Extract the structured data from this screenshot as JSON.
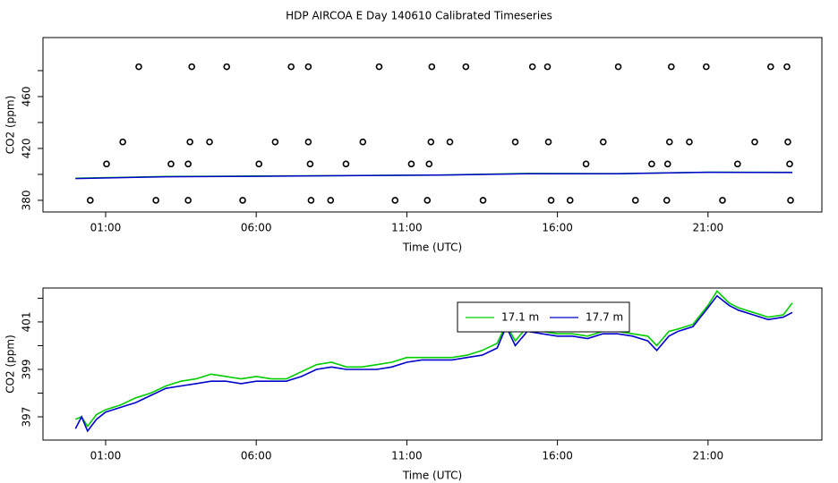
{
  "title": "HDP AIRCOA E  Day 140610  Calibrated Timeseries",
  "chart_data": [
    {
      "type": "scatter",
      "xlabel": "Time (UTC)",
      "ylabel": "CO2 (ppm)",
      "xlim": [
        -1.08,
        24.78
      ],
      "xticks": [
        {
          "value": 1,
          "label": "01:00"
        },
        {
          "value": 6,
          "label": "06:00"
        },
        {
          "value": 11,
          "label": "11:00"
        },
        {
          "value": 16,
          "label": "16:00"
        },
        {
          "value": 21,
          "label": "21:00"
        }
      ],
      "ylim": [
        371,
        505.5
      ],
      "yticks": [
        380,
        420,
        460
      ],
      "yticks_minor": [
        400,
        440,
        480
      ],
      "color": "#000000",
      "x": [
        0.49,
        2.67,
        3.74,
        5.55,
        7.82,
        8.47,
        10.61,
        11.68,
        13.53,
        15.79,
        16.42,
        18.59,
        19.63,
        21.48,
        23.74,
        1.03,
        3.17,
        3.74,
        6.09,
        7.79,
        8.98,
        11.15,
        11.74,
        16.95,
        19.13,
        19.66,
        21.98,
        23.71,
        1.57,
        3.8,
        4.45,
        6.63,
        7.73,
        9.54,
        11.8,
        12.43,
        14.6,
        15.7,
        17.52,
        19.72,
        20.38,
        22.55,
        23.65,
        2.1,
        3.86,
        5.02,
        7.16,
        7.73,
        10.08,
        11.83,
        12.96,
        15.17,
        15.67,
        18.02,
        19.78,
        20.94,
        23.08,
        23.62
      ],
      "values": [
        380,
        380,
        380,
        380,
        380,
        380,
        380,
        380,
        380,
        380,
        380,
        380,
        380,
        380,
        380,
        408,
        408,
        408,
        408,
        408,
        408,
        408,
        408,
        408,
        408,
        408,
        408,
        408,
        425,
        425,
        425,
        425,
        425,
        425,
        425,
        425,
        425,
        425,
        425,
        425,
        425,
        425,
        425,
        483,
        483,
        483,
        483,
        483,
        483,
        483,
        483,
        483,
        483,
        483,
        483,
        483,
        483,
        483
      ],
      "lines": [
        {
          "color": "#00cc00",
          "x": [
            0,
            3,
            6,
            9,
            12,
            15,
            18,
            21,
            23.8
          ],
          "values": [
            397.0,
            398.4,
            398.7,
            399.1,
            399.5,
            400.7,
            400.6,
            401.7,
            401.6
          ]
        },
        {
          "color": "#0000cc",
          "x": [
            0,
            3,
            6,
            9,
            12,
            15,
            18,
            21,
            23.8
          ],
          "values": [
            396.8,
            398.2,
            398.5,
            399.0,
            399.4,
            400.5,
            400.5,
            401.6,
            401.4
          ]
        }
      ]
    },
    {
      "type": "line",
      "xlabel": "Time (UTC)",
      "ylabel": "CO2 (ppm)",
      "xlim": [
        -1.08,
        24.78
      ],
      "xticks": [
        {
          "value": 1,
          "label": "01:00"
        },
        {
          "value": 6,
          "label": "06:00"
        },
        {
          "value": 11,
          "label": "11:00"
        },
        {
          "value": 16,
          "label": "16:00"
        },
        {
          "value": 21,
          "label": "21:00"
        }
      ],
      "ylim": [
        396.02,
        402.43
      ],
      "yticks": [
        397,
        399,
        401
      ],
      "yticks_minor": [
        398,
        400,
        402
      ],
      "legend": "top",
      "x": [
        0,
        0.2,
        0.4,
        0.7,
        1,
        1.5,
        2,
        2.5,
        3,
        3.5,
        4,
        4.5,
        5,
        5.5,
        6,
        6.5,
        7,
        7.5,
        8,
        8.5,
        9,
        9.5,
        10,
        10.5,
        11,
        11.5,
        12,
        12.5,
        13,
        13.5,
        14,
        14.3,
        14.6,
        15,
        15.5,
        16,
        16.5,
        17,
        17.5,
        18,
        18.5,
        19,
        19.3,
        19.7,
        20,
        20.5,
        21,
        21.3,
        21.7,
        22,
        22.5,
        23,
        23.5,
        23.8
      ],
      "series": [
        {
          "name": "17.1 m",
          "color": "#00cc00",
          "values": [
            396.9,
            397.0,
            396.6,
            397.1,
            397.3,
            397.5,
            397.8,
            398.0,
            398.3,
            398.5,
            398.6,
            398.8,
            398.7,
            398.6,
            398.7,
            398.6,
            398.6,
            398.9,
            399.2,
            399.3,
            399.1,
            399.1,
            399.2,
            399.3,
            399.5,
            399.5,
            399.5,
            399.5,
            399.6,
            399.8,
            400.1,
            400.9,
            400.2,
            400.8,
            400.6,
            400.5,
            400.5,
            400.4,
            400.6,
            400.6,
            400.5,
            400.4,
            400.0,
            400.6,
            400.7,
            400.9,
            401.7,
            402.3,
            401.8,
            401.6,
            401.4,
            401.2,
            401.3,
            401.8
          ]
        },
        {
          "name": "17.7 m",
          "color": "#0000cc",
          "values": [
            396.5,
            397.0,
            396.4,
            396.9,
            397.2,
            397.4,
            397.6,
            397.9,
            398.2,
            398.3,
            398.4,
            398.5,
            398.5,
            398.4,
            398.5,
            398.5,
            398.5,
            398.7,
            399.0,
            399.1,
            399.0,
            399.0,
            399.0,
            399.1,
            399.3,
            399.4,
            399.4,
            399.4,
            399.5,
            399.6,
            399.9,
            400.8,
            400.0,
            400.6,
            400.5,
            400.4,
            400.4,
            400.3,
            400.5,
            400.5,
            400.4,
            400.2,
            399.8,
            400.4,
            400.6,
            400.8,
            401.6,
            402.1,
            401.7,
            401.5,
            401.3,
            401.1,
            401.2,
            401.4
          ]
        }
      ]
    }
  ]
}
